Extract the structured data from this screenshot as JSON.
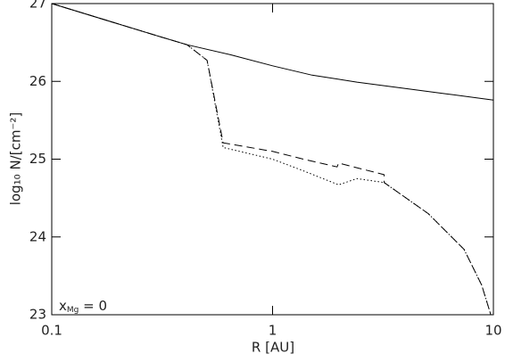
{
  "chart_data": {
    "type": "line",
    "x_label": "R [AU]",
    "y_label": "log₁₀ N/[cm⁻²]",
    "annotation": {
      "base": "x",
      "sub": "Mg",
      "rest": " = 0"
    },
    "xscale": "log",
    "xlim": [
      0.1,
      10
    ],
    "xticks": [
      0.1,
      1,
      10
    ],
    "ylim": [
      23,
      27
    ],
    "yticks": [
      23,
      24,
      25,
      26,
      27
    ],
    "series": [
      {
        "color": "#000000",
        "style": "solid",
        "x": [
          0.1,
          0.297,
          0.41,
          0.65,
          1,
          1.51,
          2.41,
          6.1,
          10
        ],
        "values": [
          27,
          26.59,
          26.47,
          26.34,
          26.2,
          26.08,
          25.99,
          25.84,
          25.76
        ]
      },
      {
        "color": "#000000",
        "style": "dashed",
        "x": [
          0.1,
          0.297,
          0.41,
          0.505,
          0.597,
          1,
          1.38,
          1.96,
          1.99,
          3.2,
          3.2,
          5.07,
          7.36,
          8.85,
          9.73
        ],
        "values": [
          27,
          26.59,
          26.47,
          26.27,
          25.21,
          25.1,
          25.0,
          24.9,
          24.95,
          24.8,
          24.7,
          24.3,
          23.84,
          23.38,
          23.0
        ]
      },
      {
        "color": "#000000",
        "style": "dotted",
        "x": [
          0.1,
          0.297,
          0.41,
          0.505,
          0.597,
          1,
          1.38,
          1.99,
          2.41,
          3.2,
          5.07,
          7.36,
          8.85,
          9.73
        ],
        "values": [
          27,
          26.59,
          26.47,
          26.27,
          25.15,
          25.0,
          24.85,
          24.67,
          24.75,
          24.7,
          24.3,
          23.84,
          23.38,
          23.0
        ]
      }
    ]
  }
}
